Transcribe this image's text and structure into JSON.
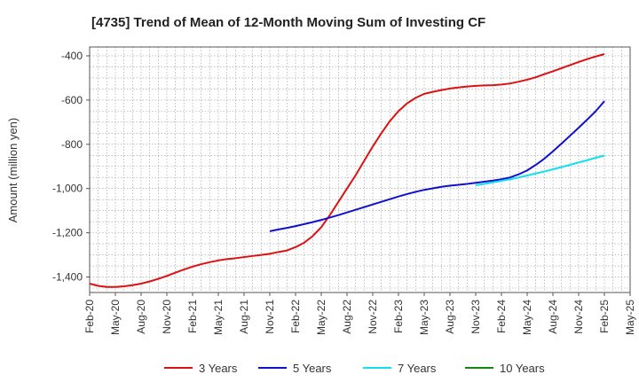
{
  "chart_data": {
    "type": "line",
    "title": "[4735]  Trend of Mean of 12-Month Moving Sum of Investing CF",
    "xlabel": "",
    "ylabel": "Amount (million yen)",
    "ylim": [
      -1470,
      -360
    ],
    "yticks": [
      -400,
      -600,
      -800,
      -1000,
      -1200,
      -1400
    ],
    "ytick_labels": [
      "-400",
      "-600",
      "-800",
      "-1,000",
      "-1,200",
      "-1,400"
    ],
    "x_start_month": "Feb-20",
    "xtick_labels": [
      "Feb-20",
      "May-20",
      "Aug-20",
      "Nov-20",
      "Feb-21",
      "May-21",
      "Aug-21",
      "Nov-21",
      "Feb-22",
      "May-22",
      "Aug-22",
      "Nov-22",
      "Feb-23",
      "May-23",
      "Aug-23",
      "Nov-23",
      "Feb-24",
      "May-24",
      "Aug-24",
      "Nov-24",
      "Feb-25",
      "May-25"
    ],
    "grid": true,
    "legend_position": "bottom",
    "series": [
      {
        "name": "3 Years",
        "color": "#dd1111",
        "start_index": 0,
        "values": [
          -1430,
          -1440,
          -1445,
          -1445,
          -1442,
          -1437,
          -1430,
          -1420,
          -1408,
          -1395,
          -1380,
          -1366,
          -1353,
          -1342,
          -1333,
          -1325,
          -1319,
          -1315,
          -1310,
          -1305,
          -1300,
          -1295,
          -1287,
          -1280,
          -1265,
          -1245,
          -1215,
          -1175,
          -1120,
          -1060,
          -1000,
          -940,
          -875,
          -810,
          -750,
          -695,
          -650,
          -615,
          -590,
          -572,
          -563,
          -555,
          -548,
          -543,
          -539,
          -536,
          -534,
          -533,
          -530,
          -525,
          -517,
          -508,
          -497,
          -483,
          -470,
          -456,
          -442,
          -428,
          -415,
          -403,
          -392
        ]
      },
      {
        "name": "5 Years",
        "color": "#1111cc",
        "start_index": 21,
        "values": [
          -1193,
          -1185,
          -1178,
          -1170,
          -1161,
          -1152,
          -1142,
          -1131,
          -1120,
          -1108,
          -1096,
          -1084,
          -1072,
          -1060,
          -1048,
          -1036,
          -1025,
          -1015,
          -1006,
          -999,
          -992,
          -987,
          -983,
          -979,
          -974,
          -969,
          -964,
          -958,
          -950,
          -936,
          -918,
          -893,
          -865,
          -832,
          -797,
          -761,
          -725,
          -688,
          -650,
          -605
        ]
      },
      {
        "name": "7 Years",
        "color": "#11e0ee",
        "start_index": 45,
        "values": [
          -985,
          -979,
          -972,
          -965,
          -958,
          -950,
          -941,
          -932,
          -923,
          -913,
          -903,
          -893,
          -882,
          -872,
          -861,
          -851
        ]
      },
      {
        "name": "10 Years",
        "color": "#118811",
        "start_index": 0,
        "values": []
      }
    ]
  }
}
